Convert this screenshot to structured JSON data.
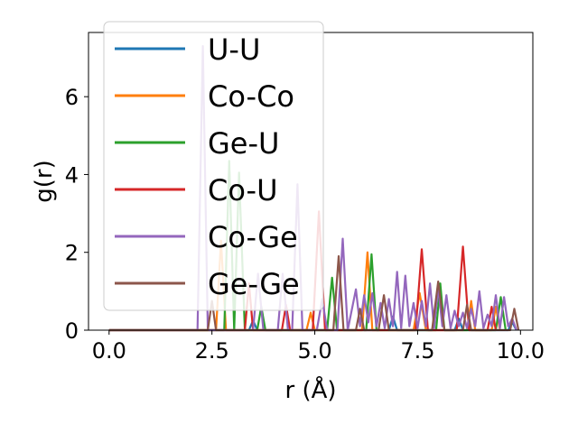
{
  "chart_data": {
    "type": "line",
    "title": "",
    "xlabel": "r (Å)",
    "ylabel": "g(r)",
    "xlim": [
      -0.5,
      10.3
    ],
    "ylim": [
      0,
      7.65
    ],
    "xticks": [
      0.0,
      2.5,
      5.0,
      7.5,
      10.0
    ],
    "xtick_labels": [
      "0.0",
      "2.5",
      "5.0",
      "7.5",
      "10.0"
    ],
    "yticks": [
      0,
      2,
      4,
      6
    ],
    "ytick_labels": [
      "0",
      "2",
      "4",
      "6"
    ],
    "grid": false,
    "legend_position": "top-left",
    "series": [
      {
        "name": "U-U",
        "color": "#1f77b4",
        "x": [
          0,
          3.4,
          3.5,
          3.6,
          6.8,
          6.9,
          7.0,
          8.4,
          8.5,
          8.6,
          9.7,
          9.8,
          9.9
        ],
        "y": [
          0,
          0,
          0.25,
          0,
          0,
          0.35,
          0,
          0,
          0.3,
          0,
          0,
          0.2,
          0
        ]
      },
      {
        "name": "Co-Co",
        "color": "#ff7f0e",
        "x": [
          0,
          2.6,
          2.72,
          2.84,
          4.8,
          4.9,
          5.0,
          6.15,
          6.28,
          6.4,
          7.4,
          7.55,
          7.7,
          8.7,
          8.8,
          8.9,
          9.3,
          9.4,
          9.5
        ],
        "y": [
          0,
          0,
          2.3,
          0,
          0,
          0.45,
          0,
          0,
          2.0,
          0,
          0,
          0.95,
          0,
          0,
          0.75,
          0,
          0,
          0.6,
          0
        ]
      },
      {
        "name": "Ge-U",
        "color": "#2ca02c",
        "x": [
          0,
          2.8,
          2.92,
          3.04,
          3.16,
          3.3,
          3.6,
          3.7,
          3.8,
          5.3,
          5.42,
          5.54,
          6.25,
          6.38,
          6.5,
          7.95,
          8.05,
          8.15,
          9.4,
          9.52,
          9.64
        ],
        "y": [
          0,
          0,
          4.35,
          0,
          4.05,
          0,
          0,
          0.6,
          0,
          0,
          1.35,
          0,
          0,
          1.95,
          0,
          0,
          1.2,
          0,
          0,
          0.85,
          0
        ]
      },
      {
        "name": "Co-U",
        "color": "#d62728",
        "x": [
          0,
          3.3,
          3.4,
          3.5,
          4.2,
          4.3,
          4.4,
          4.95,
          5.1,
          5.25,
          7.45,
          7.6,
          7.75,
          8.45,
          8.6,
          8.75,
          9.2,
          9.3,
          9.4
        ],
        "y": [
          0,
          0,
          1.2,
          0,
          0,
          0.65,
          0,
          0,
          3.05,
          0,
          0,
          2.08,
          0,
          0,
          2.15,
          0,
          0,
          0.6,
          0
        ]
      },
      {
        "name": "Co-Ge",
        "color": "#9467bd",
        "x": [
          0,
          2.15,
          2.28,
          2.4,
          3.5,
          3.62,
          3.75,
          4.1,
          4.22,
          4.35,
          4.45,
          4.58,
          4.7,
          5.05,
          5.18,
          5.3,
          5.55,
          5.68,
          5.8,
          6.0,
          6.1,
          6.2,
          6.3,
          6.4,
          6.5,
          6.6,
          6.7,
          6.8,
          6.9,
          7.0,
          7.1,
          7.2,
          7.3,
          7.4,
          7.5,
          7.6,
          7.7,
          7.8,
          7.9,
          8.0,
          8.1,
          8.2,
          8.3,
          8.4,
          8.5,
          8.6,
          8.7,
          8.8,
          8.9,
          9.0,
          9.1,
          9.2,
          9.3,
          9.4,
          9.5,
          9.6,
          9.7,
          9.8,
          9.9
        ],
        "y": [
          0,
          0,
          7.3,
          0,
          0,
          1.45,
          0,
          0,
          1.45,
          0,
          0,
          3.75,
          0,
          0,
          0.8,
          0,
          0,
          2.35,
          0,
          1.05,
          0.1,
          0.9,
          0.2,
          0.95,
          0.1,
          0.7,
          0.05,
          0.8,
          0.1,
          1.5,
          0.05,
          1.4,
          0.1,
          0.7,
          0.05,
          0.75,
          0.1,
          1.2,
          0.05,
          1.1,
          0.1,
          0.9,
          0.05,
          0.5,
          0.1,
          0.45,
          0.05,
          0.55,
          0.1,
          1.0,
          0.05,
          0.4,
          0.1,
          0.9,
          0.05,
          0.85,
          0.1,
          0.3,
          0
        ]
      },
      {
        "name": "Ge-Ge",
        "color": "#8c564b",
        "x": [
          0,
          2.4,
          2.5,
          2.6,
          5.45,
          5.58,
          5.7,
          6.0,
          6.1,
          6.2,
          6.55,
          6.68,
          6.8,
          7.85,
          8.0,
          8.15,
          8.6,
          8.7,
          8.8,
          9.75,
          9.85,
          9.95
        ],
        "y": [
          0,
          0,
          0.75,
          0,
          0,
          1.9,
          0,
          0,
          0.55,
          0,
          0,
          0.9,
          0,
          0,
          1.25,
          0,
          0,
          0.65,
          0,
          0,
          0.55,
          0
        ]
      }
    ]
  }
}
